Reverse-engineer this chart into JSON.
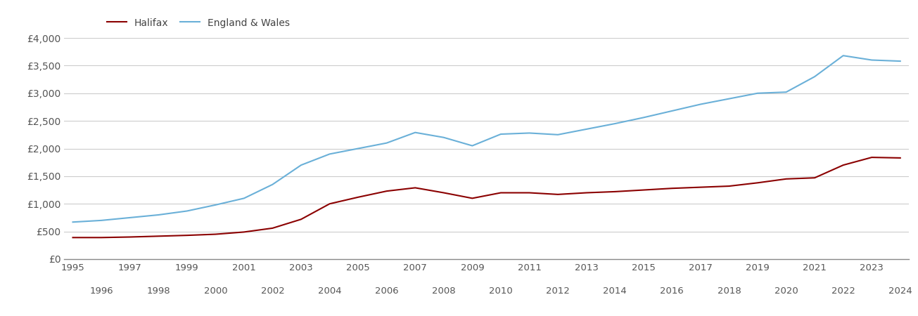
{
  "years": [
    1995,
    1996,
    1997,
    1998,
    1999,
    2000,
    2001,
    2002,
    2003,
    2004,
    2005,
    2006,
    2007,
    2008,
    2009,
    2010,
    2011,
    2012,
    2013,
    2014,
    2015,
    2016,
    2017,
    2018,
    2019,
    2020,
    2021,
    2022,
    2023,
    2024
  ],
  "halifax": [
    390,
    390,
    400,
    415,
    430,
    450,
    490,
    560,
    720,
    1000,
    1120,
    1230,
    1290,
    1200,
    1100,
    1200,
    1200,
    1170,
    1200,
    1220,
    1250,
    1280,
    1300,
    1320,
    1380,
    1450,
    1470,
    1700,
    1840,
    1830
  ],
  "england_wales": [
    670,
    700,
    750,
    800,
    870,
    980,
    1100,
    1350,
    1700,
    1900,
    2000,
    2100,
    2290,
    2200,
    2050,
    2260,
    2280,
    2250,
    2350,
    2450,
    2560,
    2680,
    2800,
    2900,
    3000,
    3020,
    3300,
    3680,
    3600,
    3580
  ],
  "halifax_color": "#8b0000",
  "england_wales_color": "#6ab0d8",
  "ylim": [
    0,
    4000
  ],
  "yticks": [
    0,
    500,
    1000,
    1500,
    2000,
    2500,
    3000,
    3500,
    4000
  ],
  "ytick_labels": [
    "£0",
    "£500",
    "£1,000",
    "£1,500",
    "£2,000",
    "£2,500",
    "£3,000",
    "£3,500",
    "£4,000"
  ],
  "legend_halifax": "Halifax",
  "legend_ew": "England & Wales",
  "background_color": "#ffffff",
  "grid_color": "#cccccc",
  "line_width": 1.5,
  "odd_xticks": [
    1995,
    1997,
    1999,
    2001,
    2003,
    2005,
    2007,
    2009,
    2011,
    2013,
    2015,
    2017,
    2019,
    2021,
    2023
  ],
  "even_xticks": [
    1996,
    1998,
    2000,
    2002,
    2004,
    2006,
    2008,
    2010,
    2012,
    2014,
    2016,
    2018,
    2020,
    2022,
    2024
  ]
}
